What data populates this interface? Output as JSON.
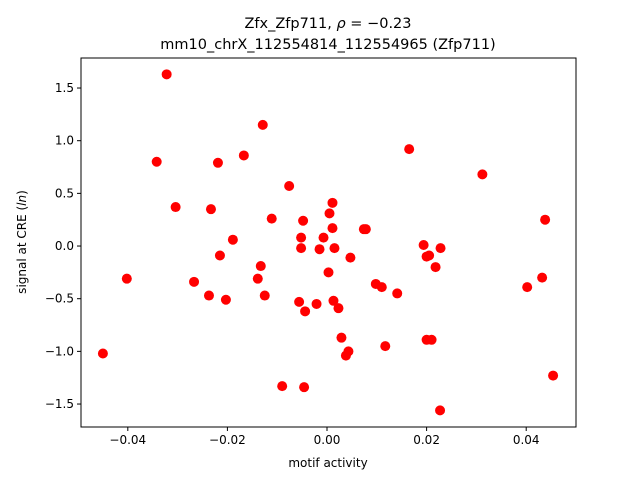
{
  "chart_data": {
    "type": "scatter",
    "title_line1_prefix": "Zfx_Zfp711, ",
    "title_line1_rho": "ρ",
    "title_line1_suffix": " = −0.23",
    "title_line2": "mm10_chrX_112554814_112554965 (Zfp711)",
    "xlabel": "motif activity",
    "ylabel_prefix": "signal at CRE (",
    "ylabel_italic": "ln",
    "ylabel_suffix": ")",
    "xlim": [
      -0.0494,
      0.05
    ],
    "ylim": [
      -1.718,
      1.785
    ],
    "xticks": [
      -0.04,
      -0.02,
      0.0,
      0.02,
      0.04
    ],
    "xtick_labels": [
      "−0.04",
      "−0.02",
      "0.00",
      "0.02",
      "0.04"
    ],
    "yticks": [
      -1.5,
      -1.0,
      -0.5,
      0.0,
      0.5,
      1.0,
      1.5
    ],
    "ytick_labels": [
      "−1.5",
      "−1.0",
      "−0.5",
      "0.0",
      "0.5",
      "1.0",
      "1.5"
    ],
    "grid": false,
    "marker_color": "#ff0000",
    "points": [
      [
        -0.045,
        -1.02
      ],
      [
        -0.0402,
        -0.31
      ],
      [
        -0.0322,
        1.63
      ],
      [
        -0.0342,
        0.8
      ],
      [
        -0.0304,
        0.37
      ],
      [
        -0.0267,
        -0.34
      ],
      [
        -0.0237,
        -0.47
      ],
      [
        -0.0233,
        0.35
      ],
      [
        -0.0219,
        0.79
      ],
      [
        -0.0215,
        -0.09
      ],
      [
        -0.0203,
        -0.51
      ],
      [
        -0.0189,
        0.06
      ],
      [
        -0.0167,
        0.86
      ],
      [
        -0.0139,
        -0.31
      ],
      [
        -0.0133,
        -0.19
      ],
      [
        -0.0129,
        1.15
      ],
      [
        -0.0125,
        -0.47
      ],
      [
        -0.0111,
        0.26
      ],
      [
        -0.009,
        -1.33
      ],
      [
        -0.0076,
        0.57
      ],
      [
        -0.0056,
        -0.53
      ],
      [
        -0.0052,
        0.08
      ],
      [
        -0.0052,
        -0.02
      ],
      [
        -0.0048,
        0.24
      ],
      [
        -0.0046,
        -1.34
      ],
      [
        -0.0044,
        -0.62
      ],
      [
        -0.0021,
        -0.55
      ],
      [
        -0.0015,
        -0.03
      ],
      [
        -0.0007,
        0.08
      ],
      [
        0.0003,
        -0.25
      ],
      [
        0.0005,
        0.31
      ],
      [
        0.0011,
        0.41
      ],
      [
        0.0011,
        0.17
      ],
      [
        0.0013,
        -0.52
      ],
      [
        0.0015,
        -0.02
      ],
      [
        0.0023,
        -0.59
      ],
      [
        0.0029,
        -0.87
      ],
      [
        0.0038,
        -1.04
      ],
      [
        0.0043,
        -1.0
      ],
      [
        0.0047,
        -0.11
      ],
      [
        0.0074,
        0.16
      ],
      [
        0.0078,
        0.16
      ],
      [
        0.0098,
        -0.36
      ],
      [
        0.011,
        -0.39
      ],
      [
        0.0117,
        -0.95
      ],
      [
        0.0141,
        -0.45
      ],
      [
        0.0165,
        0.92
      ],
      [
        0.0194,
        0.01
      ],
      [
        0.02,
        -0.1
      ],
      [
        0.0205,
        -0.09
      ],
      [
        0.02,
        -0.89
      ],
      [
        0.021,
        -0.89
      ],
      [
        0.0218,
        -0.2
      ],
      [
        0.0227,
        -1.56
      ],
      [
        0.0228,
        -0.02
      ],
      [
        0.0312,
        0.68
      ],
      [
        0.0402,
        -0.39
      ],
      [
        0.0432,
        -0.3
      ],
      [
        0.0438,
        0.25
      ],
      [
        0.0454,
        -1.23
      ]
    ]
  }
}
